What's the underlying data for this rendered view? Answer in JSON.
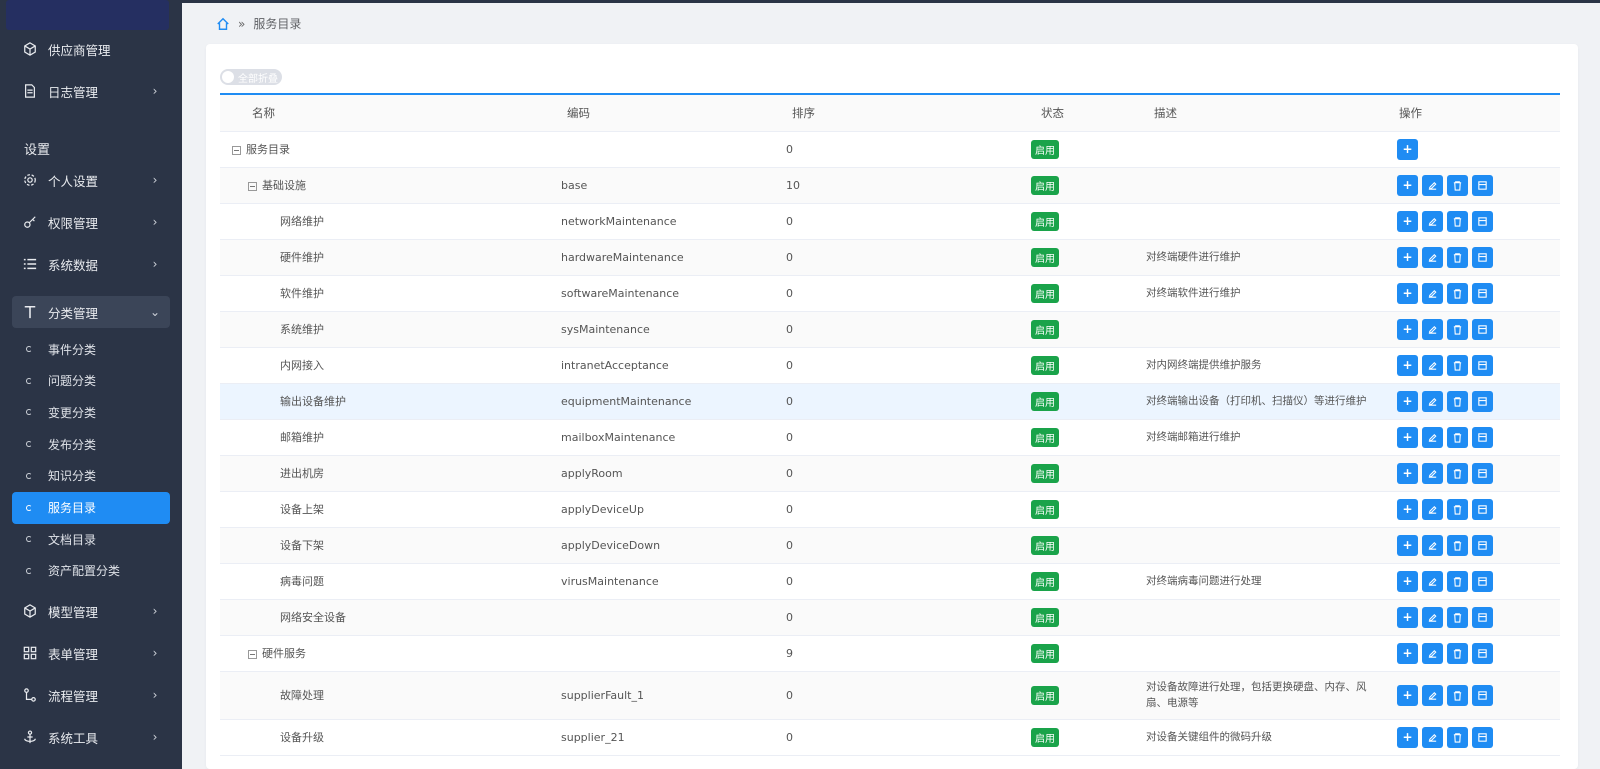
{
  "sidebar": {
    "section_label": "设置",
    "top_items": [
      {
        "label": "供应商管理",
        "icon": "cube-icon",
        "arrow": false
      },
      {
        "label": "日志管理",
        "icon": "document-icon",
        "arrow": true
      }
    ],
    "items": [
      {
        "label": "个人设置",
        "icon": "gear-icon"
      },
      {
        "label": "权限管理",
        "icon": "key-icon"
      },
      {
        "label": "系统数据",
        "icon": "list-icon"
      },
      {
        "label": "分类管理",
        "icon": "type-icon"
      }
    ],
    "sub_items": [
      {
        "label": "事件分类",
        "active": false
      },
      {
        "label": "问题分类",
        "active": false
      },
      {
        "label": "变更分类",
        "active": false
      },
      {
        "label": "发布分类",
        "active": false
      },
      {
        "label": "知识分类",
        "active": false
      },
      {
        "label": "服务目录",
        "active": true
      },
      {
        "label": "文档目录",
        "active": false
      },
      {
        "label": "资产配置分类",
        "active": false
      }
    ],
    "bottom_items": [
      {
        "label": "模型管理",
        "icon": "cube-icon"
      },
      {
        "label": "表单管理",
        "icon": "grid-icon"
      },
      {
        "label": "流程管理",
        "icon": "flow-icon"
      },
      {
        "label": "系统工具",
        "icon": "anchor-icon"
      }
    ]
  },
  "breadcrumb": {
    "separator": "»",
    "current": "服务目录"
  },
  "toggle": {
    "label": "全部折叠"
  },
  "table": {
    "headers": {
      "name": "名称",
      "code": "编码",
      "sort": "排序",
      "status": "状态",
      "desc": "描述",
      "ops": "操作"
    },
    "rows": [
      {
        "name": "服务目录",
        "level": 0,
        "tree": true,
        "code": "",
        "sort": "0",
        "status": "启用",
        "desc": "",
        "ops": "add"
      },
      {
        "name": "基础设施",
        "level": 1,
        "tree": true,
        "code": "base",
        "sort": "10",
        "status": "启用",
        "desc": "",
        "ops": "all"
      },
      {
        "name": "网络维护",
        "level": 2,
        "tree": false,
        "code": "networkMaintenance",
        "sort": "0",
        "status": "启用",
        "desc": "",
        "ops": "all"
      },
      {
        "name": "硬件维护",
        "level": 2,
        "tree": false,
        "code": "hardwareMaintenance",
        "sort": "0",
        "status": "启用",
        "desc": "对终端硬件进行维护",
        "ops": "all"
      },
      {
        "name": "软件维护",
        "level": 2,
        "tree": false,
        "code": "softwareMaintenance",
        "sort": "0",
        "status": "启用",
        "desc": "对终端软件进行维护",
        "ops": "all"
      },
      {
        "name": "系统维护",
        "level": 2,
        "tree": false,
        "code": "sysMaintenance",
        "sort": "0",
        "status": "启用",
        "desc": "",
        "ops": "all"
      },
      {
        "name": "内网接入",
        "level": 2,
        "tree": false,
        "code": "intranetAcceptance",
        "sort": "0",
        "status": "启用",
        "desc": "对内网终端提供维护服务",
        "ops": "all"
      },
      {
        "name": "输出设备维护",
        "level": 2,
        "tree": false,
        "code": "equipmentMaintenance",
        "sort": "0",
        "status": "启用",
        "desc": "对终端输出设备（打印机、扫描仪）等进行维护",
        "ops": "all",
        "highlight": true
      },
      {
        "name": "邮箱维护",
        "level": 2,
        "tree": false,
        "code": "mailboxMaintenance",
        "sort": "0",
        "status": "启用",
        "desc": "对终端邮箱进行维护",
        "ops": "all"
      },
      {
        "name": "进出机房",
        "level": 2,
        "tree": false,
        "code": "applyRoom",
        "sort": "0",
        "status": "启用",
        "desc": "",
        "ops": "all"
      },
      {
        "name": "设备上架",
        "level": 2,
        "tree": false,
        "code": "applyDeviceUp",
        "sort": "0",
        "status": "启用",
        "desc": "",
        "ops": "all"
      },
      {
        "name": "设备下架",
        "level": 2,
        "tree": false,
        "code": "applyDeviceDown",
        "sort": "0",
        "status": "启用",
        "desc": "",
        "ops": "all"
      },
      {
        "name": "病毒问题",
        "level": 2,
        "tree": false,
        "code": "virusMaintenance",
        "sort": "0",
        "status": "启用",
        "desc": "对终端病毒问题进行处理",
        "ops": "all"
      },
      {
        "name": "网络安全设备",
        "level": 2,
        "tree": false,
        "code": "",
        "sort": "0",
        "status": "启用",
        "desc": "",
        "ops": "all"
      },
      {
        "name": "硬件服务",
        "level": 1,
        "tree": true,
        "code": "",
        "sort": "9",
        "status": "启用",
        "desc": "",
        "ops": "all"
      },
      {
        "name": "故障处理",
        "level": 2,
        "tree": false,
        "code": "supplierFault_1",
        "sort": "0",
        "status": "启用",
        "desc": "对设备故障进行处理，包括更换硬盘、内存、风扇、电源等",
        "ops": "all",
        "tall": true
      },
      {
        "name": "设备升级",
        "level": 2,
        "tree": false,
        "code": "supplier_21",
        "sort": "0",
        "status": "启用",
        "desc": "对设备关键组件的微码升级",
        "ops": "all"
      }
    ]
  }
}
